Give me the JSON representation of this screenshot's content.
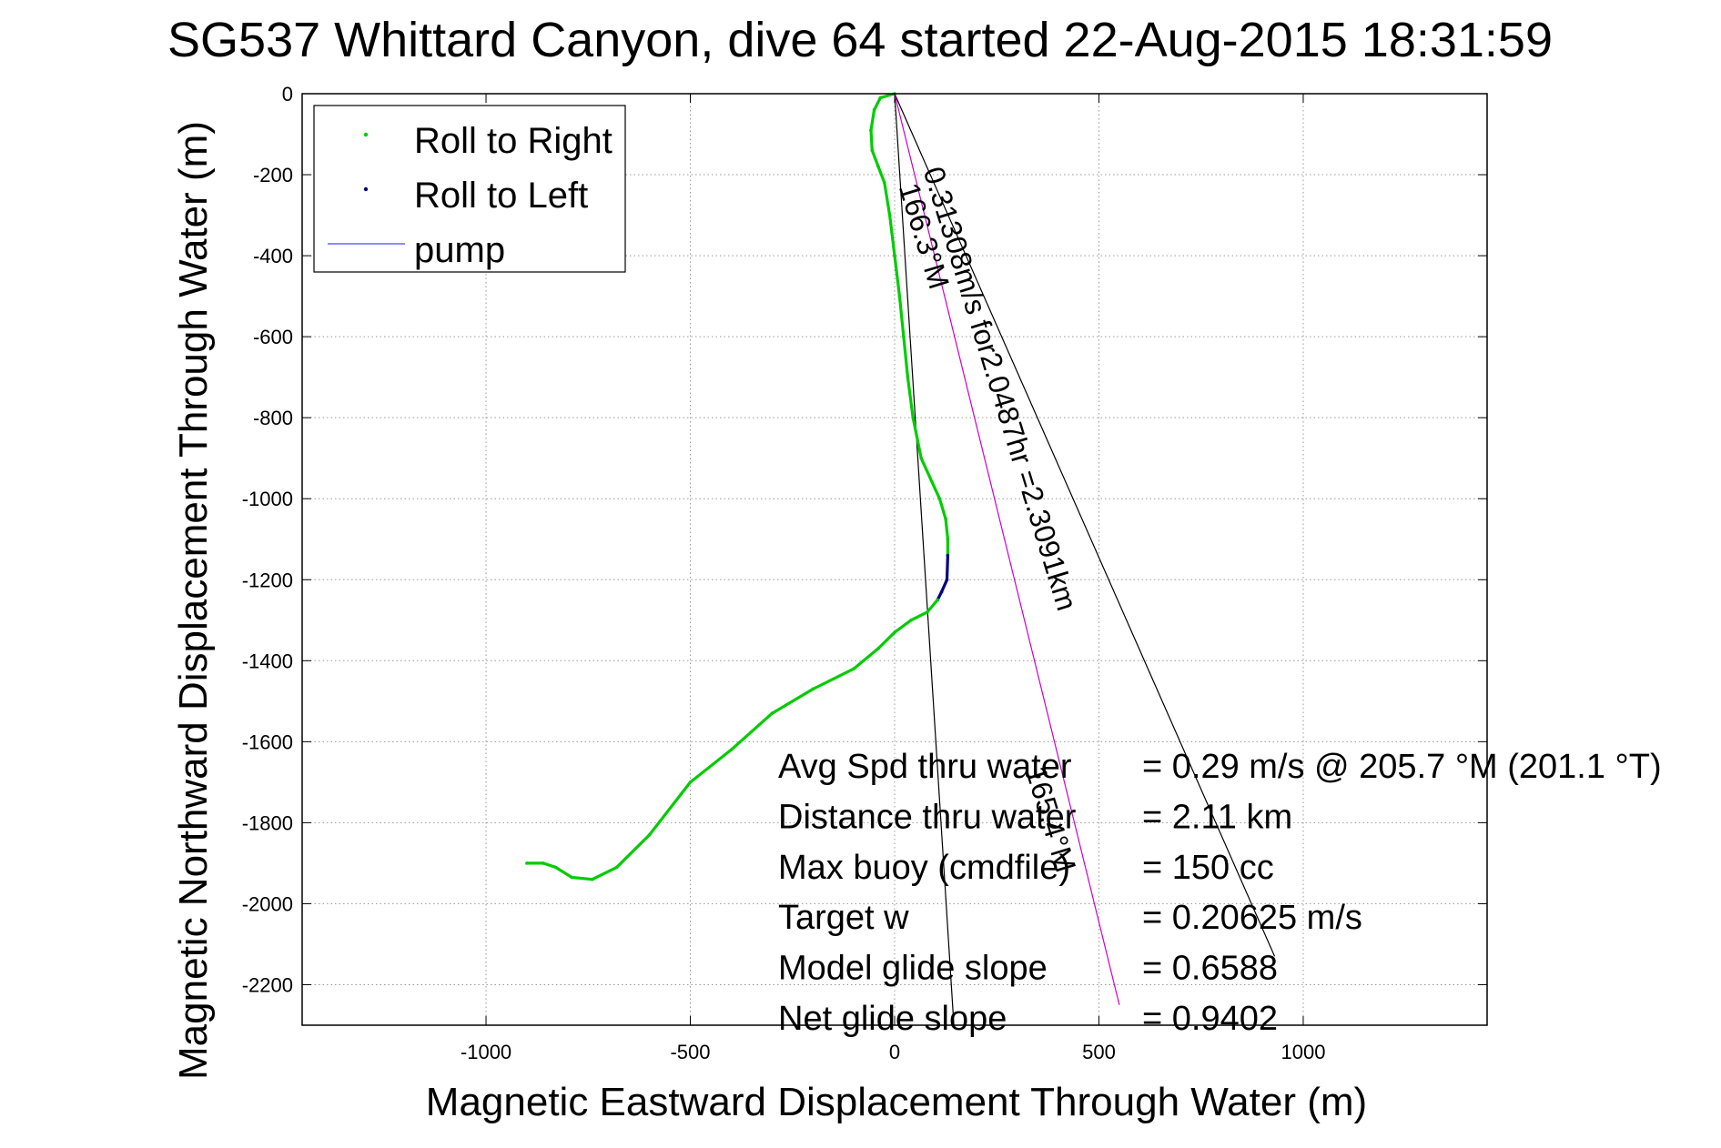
{
  "chart_data": {
    "type": "scatter",
    "title": "SG537 Whittard Canyon, dive 64 started 22-Aug-2015 18:31:59",
    "xlabel": "Magnetic Eastward Displacement Through Water (m)",
    "ylabel": "Magnetic Northward Displacement Through Water (m)",
    "xlim": [
      -1450,
      1450
    ],
    "ylim": [
      -2300,
      0
    ],
    "grid": true,
    "legend_position": "top-left",
    "x_ticks": [
      -1000,
      -500,
      0,
      500,
      1000
    ],
    "x_tick_labels": [
      "-1000",
      "-500",
      "0",
      "500",
      "1000"
    ],
    "y_ticks": [
      0,
      -200,
      -400,
      -600,
      -800,
      -1000,
      -1200,
      -1400,
      -1600,
      -1800,
      -2000,
      -2200
    ],
    "y_tick_labels": [
      "0",
      "-200",
      "-400",
      "-600",
      "-800",
      "-1000",
      "-1200",
      "-1400",
      "-1600",
      "-1800",
      "-2000",
      "-2200"
    ],
    "legend": [
      {
        "label": "Roll to Right",
        "color": "#00cc00",
        "marker": "dot"
      },
      {
        "label": "Roll to Left",
        "color": "#000080",
        "marker": "dot"
      },
      {
        "label": "pump",
        "color": "#6666ff",
        "marker": "line"
      }
    ],
    "series": [
      {
        "name": "Roll to Right",
        "color": "#00cc00",
        "points": [
          [
            0,
            0
          ],
          [
            -35,
            -10
          ],
          [
            -50,
            -40
          ],
          [
            -58,
            -90
          ],
          [
            -55,
            -140
          ],
          [
            -40,
            -180
          ],
          [
            -25,
            -220
          ],
          [
            -12,
            -300
          ],
          [
            0,
            -400
          ],
          [
            12,
            -500
          ],
          [
            22,
            -600
          ],
          [
            32,
            -700
          ],
          [
            45,
            -800
          ],
          [
            65,
            -900
          ],
          [
            110,
            -1000
          ],
          [
            125,
            -1050
          ],
          [
            130,
            -1100
          ],
          [
            130,
            -1140
          ]
        ]
      },
      {
        "name": "Roll to Left",
        "color": "#000080",
        "points": [
          [
            130,
            -1140
          ],
          [
            128,
            -1200
          ],
          [
            115,
            -1230
          ],
          [
            105,
            -1250
          ]
        ]
      },
      {
        "name": "Roll to Right",
        "color": "#00cc00",
        "points": [
          [
            105,
            -1250
          ],
          [
            80,
            -1280
          ],
          [
            40,
            -1300
          ],
          [
            0,
            -1330
          ],
          [
            -40,
            -1370
          ],
          [
            -100,
            -1420
          ],
          [
            -200,
            -1470
          ],
          [
            -300,
            -1530
          ],
          [
            -400,
            -1620
          ],
          [
            -500,
            -1700
          ],
          [
            -600,
            -1830
          ],
          [
            -680,
            -1910
          ],
          [
            -740,
            -1940
          ],
          [
            -790,
            -1935
          ],
          [
            -830,
            -1910
          ],
          [
            -860,
            -1900
          ],
          [
            -900,
            -1900
          ]
        ]
      }
    ],
    "reference_lines": [
      {
        "color": "#000000",
        "points": [
          [
            0,
            0
          ],
          [
            145,
            -2300
          ]
        ]
      },
      {
        "color": "#000000",
        "points": [
          [
            0,
            0
          ],
          [
            930,
            -2130
          ]
        ]
      },
      {
        "color": "#cc00cc",
        "points": [
          [
            0,
            0
          ],
          [
            550,
            -2250
          ]
        ]
      }
    ],
    "annotations": [
      {
        "text": "0.31308m/s for2.0487hr =2.3091km",
        "x": 70,
        "y": -190,
        "rotation": 73
      },
      {
        "text": "166.3°M",
        "x": 10,
        "y": -230,
        "rotation": 73
      },
      {
        "text": "165.4°M",
        "x": 320,
        "y": -1670,
        "rotation": 73
      }
    ],
    "stats": [
      {
        "label": "Avg Spd thru water",
        "value": "=  0.29 m/s @ 205.7 °M (201.1 °T)"
      },
      {
        "label": "Distance thru water",
        "value": "=  2.11 km"
      },
      {
        "label": "Max buoy (cmdfile)",
        "value": "= 150 cc"
      },
      {
        "label": "Target w",
        "value": "= 0.20625 m/s"
      },
      {
        "label": "Model glide slope",
        "value": "= 0.6588"
      },
      {
        "label": "Net glide slope",
        "value": "= 0.9402"
      }
    ]
  }
}
